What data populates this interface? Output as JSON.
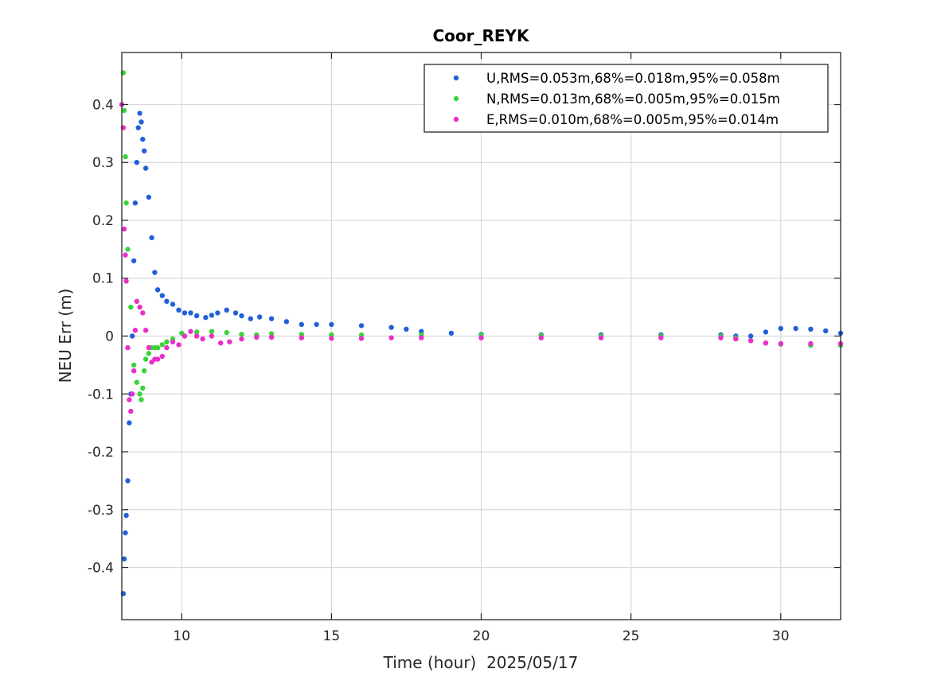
{
  "chart_data": {
    "type": "scatter",
    "title": "Coor_REYK",
    "xlabel": "Time (hour)  2025/05/17",
    "ylabel": "NEU Err (m)",
    "xlim": [
      8,
      32
    ],
    "ylim": [
      -0.49,
      0.49
    ],
    "xticks": [
      10,
      15,
      20,
      25,
      30
    ],
    "xtick_labels": [
      "10",
      "15",
      "20",
      "25",
      "30"
    ],
    "yticks": [
      -0.4,
      -0.3,
      -0.2,
      -0.1,
      0,
      0.1,
      0.2,
      0.3,
      0.4
    ],
    "ytick_labels": [
      "-0.4",
      "-0.3",
      "-0.2",
      "-0.1",
      "0",
      "0.1",
      "0.2",
      "0.3",
      "0.4"
    ],
    "grid": true,
    "legend_position": "top-right",
    "series": [
      {
        "name": "U,RMS=0.053m,68%=0.018m,95%=0.058m",
        "color": "#2260d8",
        "x": [
          8.05,
          8.08,
          8.12,
          8.15,
          8.2,
          8.25,
          8.3,
          8.35,
          8.4,
          8.45,
          8.5,
          8.55,
          8.6,
          8.65,
          8.7,
          8.75,
          8.8,
          8.9,
          9.0,
          9.1,
          9.2,
          9.35,
          9.5,
          9.7,
          9.9,
          10.1,
          10.3,
          10.5,
          10.8,
          11.0,
          11.2,
          11.5,
          11.8,
          12.0,
          12.3,
          12.6,
          13.0,
          13.5,
          14.0,
          14.5,
          15.0,
          16.0,
          17.0,
          17.5,
          18.0,
          19.0,
          20.0,
          22.0,
          24.0,
          26.0,
          28.0,
          28.5,
          29.0,
          29.5,
          30.0,
          30.5,
          31.0,
          31.5,
          32.0
        ],
        "y": [
          -0.445,
          -0.385,
          -0.34,
          -0.31,
          -0.25,
          -0.15,
          -0.1,
          0.0,
          0.13,
          0.23,
          0.3,
          0.36,
          0.385,
          0.37,
          0.34,
          0.32,
          0.29,
          0.24,
          0.17,
          0.11,
          0.08,
          0.07,
          0.06,
          0.055,
          0.045,
          0.04,
          0.04,
          0.035,
          0.032,
          0.036,
          0.04,
          0.045,
          0.04,
          0.035,
          0.03,
          0.033,
          0.03,
          0.025,
          0.02,
          0.02,
          0.02,
          0.018,
          0.015,
          0.012,
          0.008,
          0.005,
          0.003,
          0.002,
          0.002,
          0.002,
          0.002,
          0.0,
          0.0,
          0.007,
          0.013,
          0.013,
          0.012,
          0.009,
          0.005
        ]
      },
      {
        "name": "N,RMS=0.013m,68%=0.005m,95%=0.015m",
        "color": "#3ad33a",
        "x": [
          8.05,
          8.08,
          8.12,
          8.15,
          8.2,
          8.3,
          8.4,
          8.5,
          8.6,
          8.65,
          8.7,
          8.75,
          8.8,
          8.9,
          9.0,
          9.1,
          9.2,
          9.35,
          9.5,
          9.7,
          10.0,
          10.5,
          11.0,
          11.5,
          12.0,
          12.5,
          13.0,
          14.0,
          15.0,
          16.0,
          18.0,
          20.0,
          22.0,
          24.0,
          26.0,
          28.0,
          28.5,
          29.0,
          29.5,
          30.0,
          31.0,
          32.0
        ],
        "y": [
          0.455,
          0.39,
          0.31,
          0.23,
          0.15,
          0.05,
          -0.05,
          -0.08,
          -0.1,
          -0.11,
          -0.09,
          -0.06,
          -0.04,
          -0.03,
          -0.02,
          -0.02,
          -0.02,
          -0.015,
          -0.01,
          -0.005,
          0.005,
          0.007,
          0.008,
          0.006,
          0.003,
          0.002,
          0.004,
          0.003,
          0.002,
          0.002,
          0.002,
          0.002,
          0.001,
          0.0,
          0.0,
          0.0,
          -0.003,
          -0.008,
          -0.012,
          -0.014,
          -0.016,
          -0.016
        ]
      },
      {
        "name": "E,RMS=0.010m,68%=0.005m,95%=0.014m",
        "color": "#ea2fc8",
        "x": [
          8.0,
          8.05,
          8.08,
          8.12,
          8.15,
          8.2,
          8.25,
          8.3,
          8.35,
          8.4,
          8.45,
          8.5,
          8.6,
          8.7,
          8.8,
          8.9,
          9.0,
          9.1,
          9.2,
          9.35,
          9.5,
          9.7,
          9.9,
          10.1,
          10.3,
          10.5,
          10.7,
          11.0,
          11.3,
          11.6,
          12.0,
          12.5,
          13.0,
          14.0,
          15.0,
          16.0,
          17.0,
          18.0,
          20.0,
          22.0,
          24.0,
          26.0,
          28.0,
          28.5,
          29.0,
          29.5,
          30.0,
          31.0,
          32.0
        ],
        "y": [
          0.4,
          0.36,
          0.185,
          0.14,
          0.095,
          -0.02,
          -0.11,
          -0.13,
          -0.1,
          -0.06,
          0.01,
          0.06,
          0.05,
          0.04,
          0.01,
          -0.02,
          -0.045,
          -0.04,
          -0.04,
          -0.035,
          -0.02,
          -0.01,
          -0.015,
          0.0,
          0.008,
          0.0,
          -0.005,
          0.0,
          -0.012,
          -0.01,
          -0.005,
          -0.002,
          -0.002,
          -0.003,
          -0.004,
          -0.004,
          -0.003,
          -0.003,
          -0.003,
          -0.003,
          -0.003,
          -0.003,
          -0.003,
          -0.005,
          -0.008,
          -0.012,
          -0.013,
          -0.013,
          -0.013
        ]
      }
    ]
  }
}
